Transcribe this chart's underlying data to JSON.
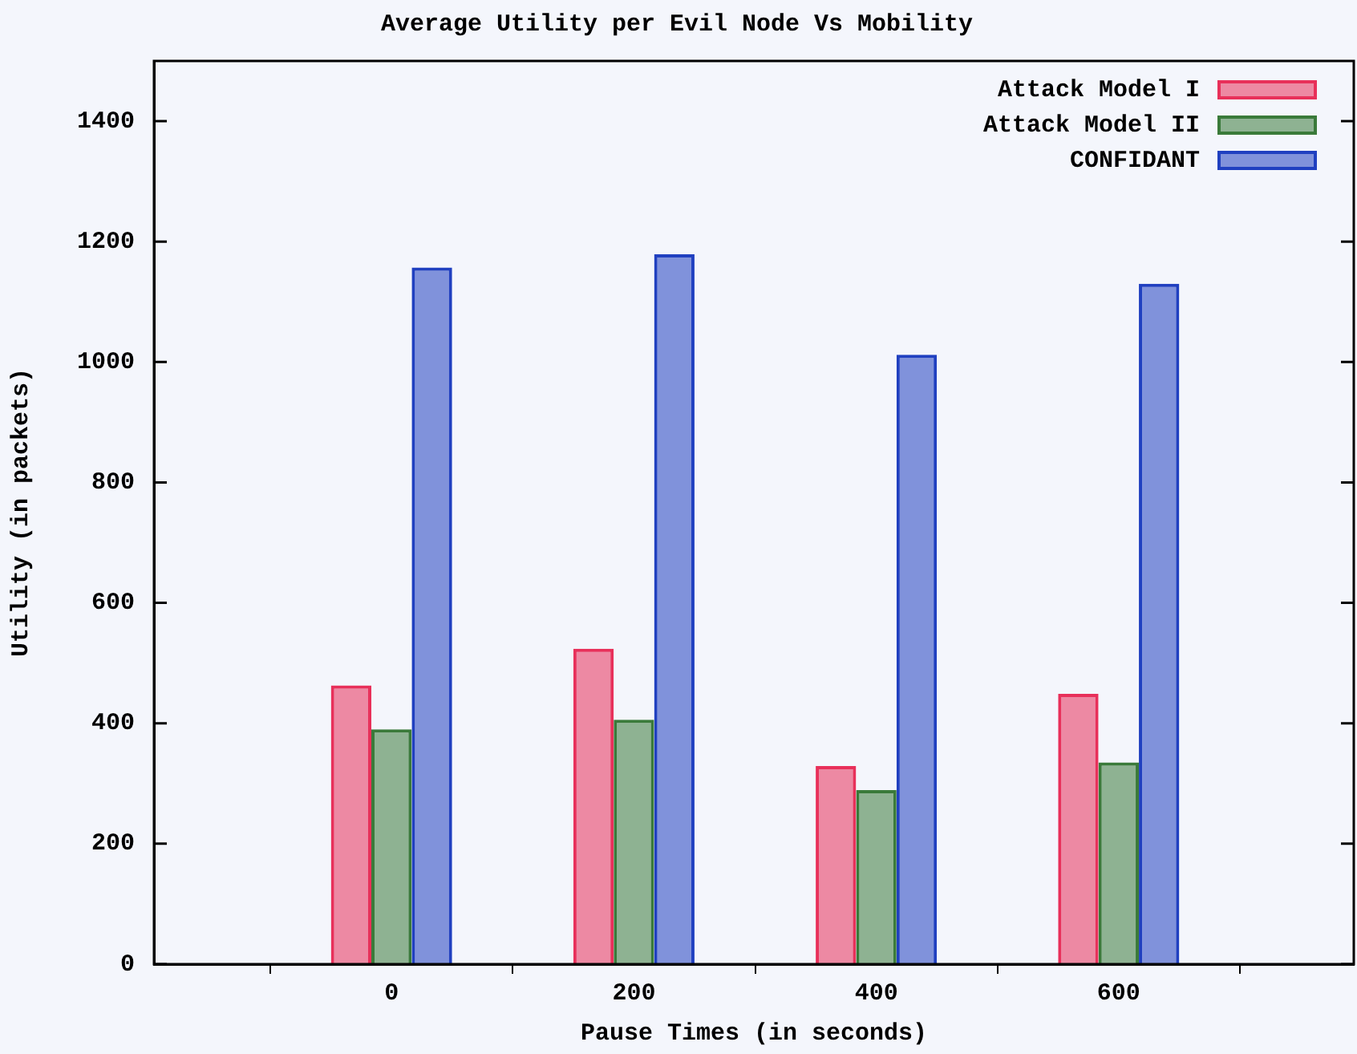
{
  "chart_data": {
    "type": "bar",
    "title": "Average Utility per Evil Node Vs Mobility",
    "xlabel": "Pause Times (in seconds)",
    "ylabel": "Utility (in packets)",
    "categories": [
      "0",
      "200",
      "400",
      "600"
    ],
    "series": [
      {
        "name": "Attack Model I",
        "color": "#e8305a",
        "values": [
          463,
          524,
          329,
          449
        ]
      },
      {
        "name": "Attack Model II",
        "color": "#3a7a3a",
        "values": [
          390,
          406,
          289,
          335
        ]
      },
      {
        "name": "CONFIDANT",
        "color": "#2040c0",
        "values": [
          1157,
          1179,
          1012,
          1130
        ]
      }
    ],
    "ylim": [
      0,
      1500
    ],
    "yticks": [
      0,
      200,
      400,
      600,
      800,
      1000,
      1200,
      1400
    ],
    "grid": false,
    "legend": "top right"
  }
}
